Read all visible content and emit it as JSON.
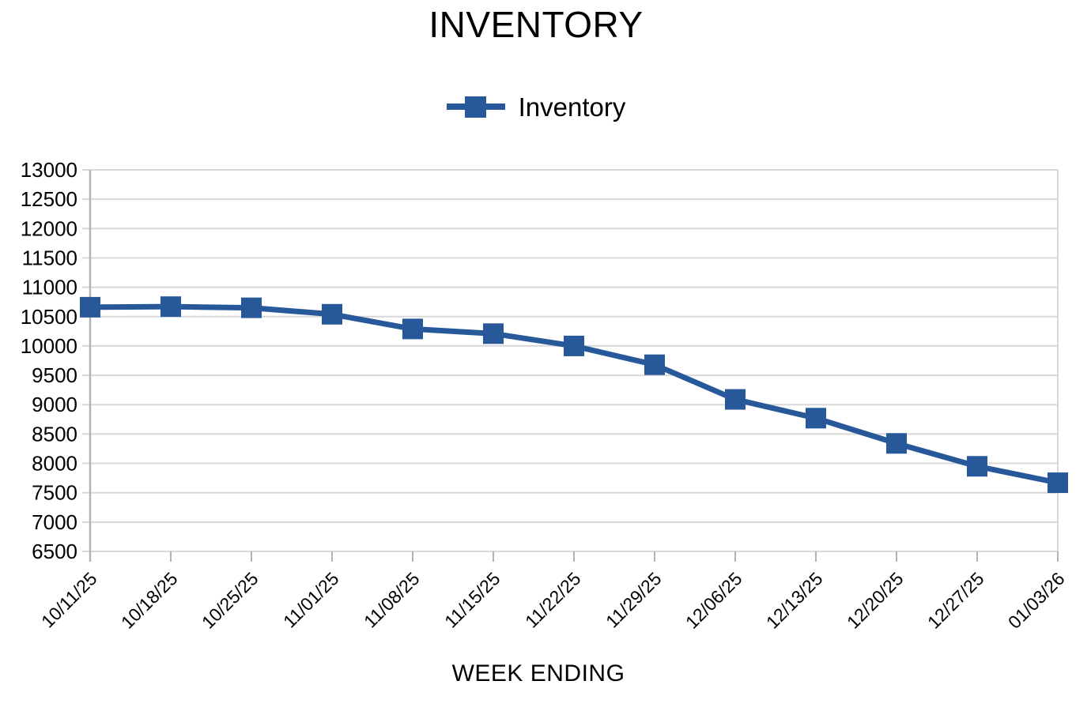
{
  "chart_data": {
    "type": "line",
    "title": "INVENTORY",
    "series_name": "Inventory",
    "xlabel": "WEEK ENDING",
    "ylabel": "",
    "categories": [
      "10/11/25",
      "10/18/25",
      "10/25/25",
      "11/01/25",
      "11/08/25",
      "11/15/25",
      "11/22/25",
      "11/29/25",
      "12/06/25",
      "12/13/25",
      "12/20/25",
      "12/27/25",
      "01/03/26"
    ],
    "series": [
      {
        "name": "Inventory",
        "values": [
          10660,
          10670,
          10650,
          10540,
          10290,
          10210,
          10000,
          9680,
          9090,
          8770,
          8340,
          7950,
          7670
        ]
      }
    ],
    "ylim": [
      6500,
      13000
    ],
    "y_tick_step": 500,
    "y_tick_labels": [
      "6500",
      "7000",
      "7500",
      "8000",
      "8500",
      "9000",
      "9500",
      "10000",
      "10500",
      "11000",
      "11500",
      "12000",
      "12500",
      "13000"
    ],
    "grid": true,
    "legend_position": "top",
    "marker": "square",
    "colors": {
      "series": "#27599a",
      "gridline": "#d8d8d8",
      "axis": "#b3b3b3",
      "text": "#000000",
      "background": "#ffffff"
    }
  }
}
